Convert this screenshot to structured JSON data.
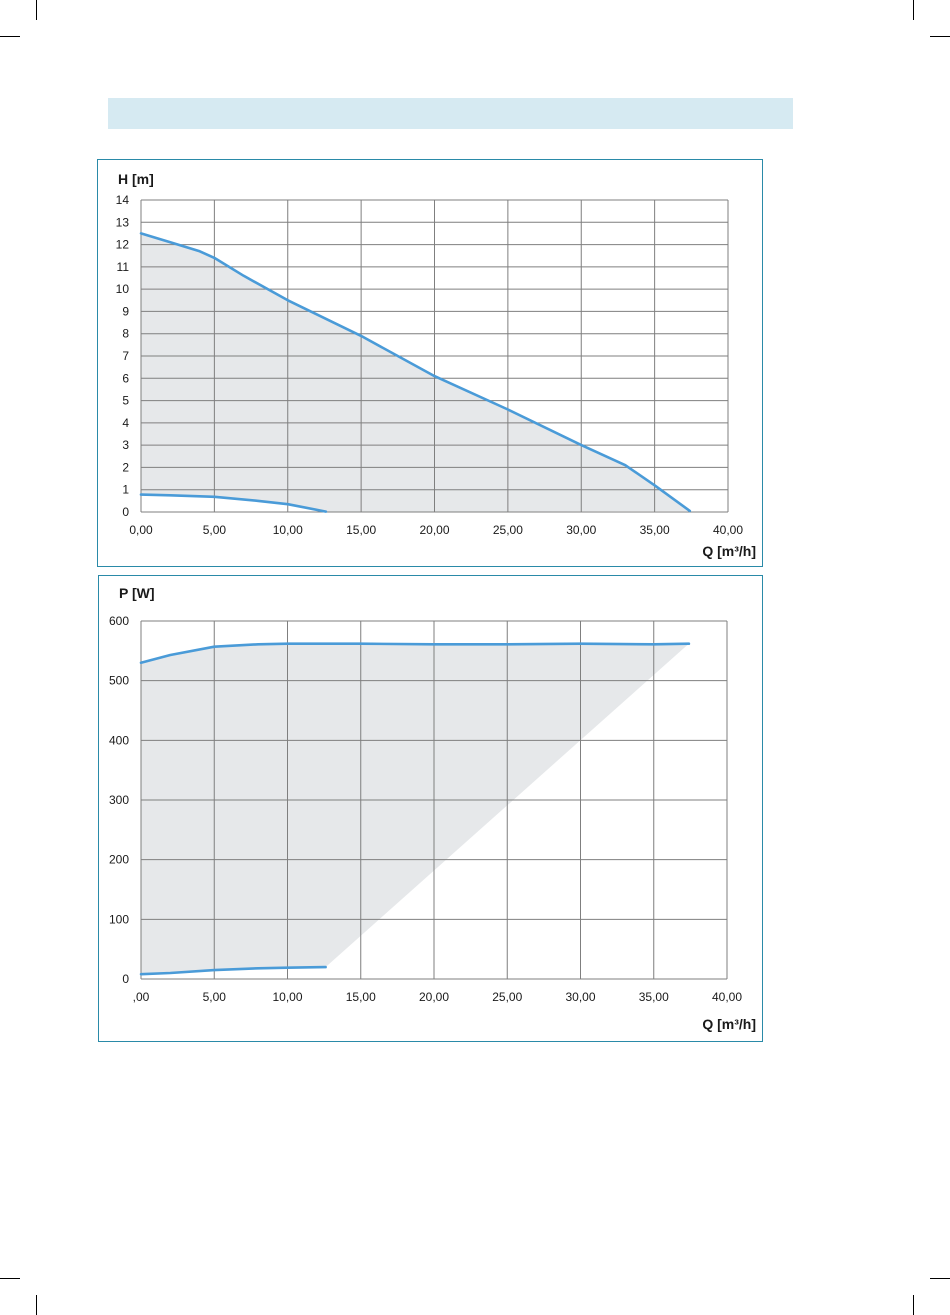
{
  "chart_data": [
    {
      "type": "area",
      "ylabel": "H [m]",
      "xlabel": "Q [m³/h]",
      "xlim": [
        0,
        40
      ],
      "ylim": [
        0,
        14
      ],
      "xticks": [
        "0,00",
        "5,00",
        "10,00",
        "15,00",
        "20,00",
        "25,00",
        "30,00",
        "35,00",
        "40,00"
      ],
      "yticks": [
        "0",
        "1",
        "2",
        "3",
        "4",
        "5",
        "6",
        "7",
        "8",
        "9",
        "10",
        "11",
        "12",
        "13",
        "14"
      ],
      "grid": true,
      "colors": {
        "line": "#4a9bd8",
        "fill": "#e6e8ea",
        "grid": "#7f7f7f"
      },
      "series": [
        {
          "x": [
            0,
            2,
            4,
            5,
            7,
            10,
            15,
            20,
            25,
            30,
            33,
            35,
            37.4
          ],
          "y": [
            12.5,
            12.1,
            11.7,
            11.4,
            10.6,
            9.5,
            7.9,
            6.1,
            4.6,
            3.0,
            2.1,
            1.2,
            0.05
          ]
        },
        {
          "x": [
            0,
            2,
            5,
            8,
            10,
            12.6
          ],
          "y": [
            0.78,
            0.75,
            0.68,
            0.5,
            0.35,
            0.02
          ]
        }
      ]
    },
    {
      "type": "area",
      "ylabel": "P [W]",
      "xlabel": "Q [m³/h]",
      "xlim": [
        0,
        40
      ],
      "ylim": [
        0,
        600
      ],
      "xticks": [
        ",00",
        "5,00",
        "10,00",
        "15,00",
        "20,00",
        "25,00",
        "30,00",
        "35,00",
        "40,00"
      ],
      "yticks": [
        "0",
        "100",
        "200",
        "300",
        "400",
        "500",
        "600"
      ],
      "grid": true,
      "colors": {
        "line": "#4a9bd8",
        "fill": "#e6e8ea",
        "grid": "#7f7f7f"
      },
      "series": [
        {
          "x": [
            0,
            2,
            5,
            8,
            10,
            15,
            20,
            25,
            30,
            35,
            37.4
          ],
          "y": [
            530,
            543,
            557,
            561,
            562,
            562,
            561,
            561,
            562,
            561,
            562
          ]
        },
        {
          "x": [
            0,
            2,
            5,
            8,
            10,
            12.6
          ],
          "y": [
            8,
            10,
            15,
            18,
            19,
            20
          ]
        }
      ]
    }
  ]
}
